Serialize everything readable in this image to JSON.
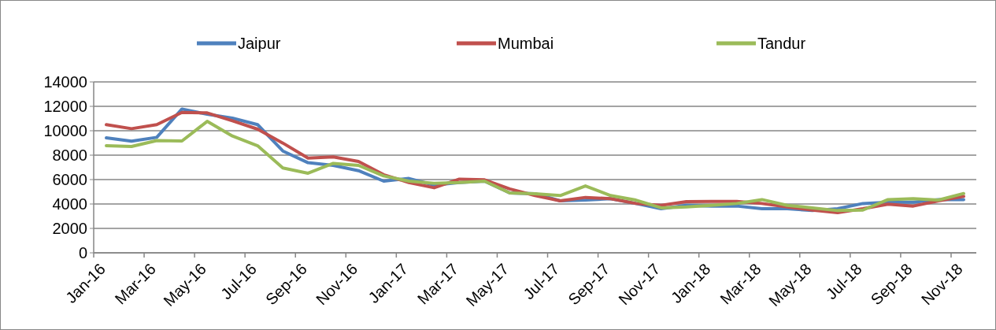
{
  "chart_data": {
    "type": "line",
    "categories": [
      "Jan-16",
      null,
      "Mar-16",
      null,
      "May-16",
      null,
      "Jul-16",
      null,
      "Sep-16",
      null,
      "Nov-16",
      null,
      "Jan-17",
      null,
      "Mar-17",
      null,
      "May-17",
      null,
      "Jul-17",
      null,
      "Sep-17",
      null,
      "Nov-17",
      null,
      "Jan-18",
      null,
      "Mar-18",
      null,
      "May-18",
      null,
      "Jul-18",
      null,
      "Sep-18",
      null,
      "Nov-18"
    ],
    "series": [
      {
        "name": "Jaipur",
        "color": "#4f81bd",
        "values": [
          9420,
          9140,
          9460,
          11780,
          11350,
          11030,
          10500,
          8340,
          7380,
          7160,
          6730,
          5870,
          6090,
          5550,
          5760,
          5870,
          4900,
          4840,
          4260,
          4320,
          4430,
          4040,
          3610,
          3890,
          3830,
          3830,
          3610,
          3610,
          3460,
          3610,
          4040,
          4150,
          4150,
          4360,
          4360
        ]
      },
      {
        "name": "Mumbai",
        "color": "#c0504d",
        "values": [
          10500,
          10170,
          10500,
          11500,
          11460,
          10820,
          10130,
          8990,
          7760,
          7850,
          7480,
          6400,
          5760,
          5330,
          6040,
          5980,
          5230,
          4690,
          4260,
          4540,
          4430,
          4040,
          3890,
          4190,
          4210,
          4210,
          4040,
          3760,
          3500,
          3290,
          3610,
          3980,
          3830,
          4260,
          4620
        ]
      },
      {
        "name": "Tandur",
        "color": "#9bbb59",
        "values": [
          8770,
          8710,
          9190,
          9160,
          10770,
          9570,
          8770,
          6950,
          6520,
          7330,
          7160,
          6300,
          5870,
          5700,
          5760,
          5870,
          4900,
          4840,
          4690,
          5480,
          4690,
          4320,
          3680,
          3760,
          3890,
          4040,
          4360,
          3890,
          3680,
          3460,
          3500,
          4360,
          4430,
          4320,
          4860
        ]
      }
    ],
    "ylim": [
      0,
      14000
    ],
    "yticks": [
      0,
      2000,
      4000,
      6000,
      8000,
      10000,
      12000,
      14000
    ],
    "grid": "y",
    "legend": "top",
    "marker": "none",
    "line_style": "solid"
  }
}
